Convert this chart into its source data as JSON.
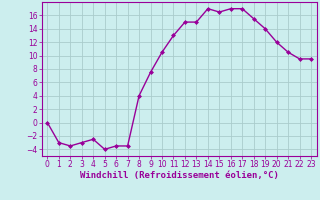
{
  "x": [
    0,
    1,
    2,
    3,
    4,
    5,
    6,
    7,
    8,
    9,
    10,
    11,
    12,
    13,
    14,
    15,
    16,
    17,
    18,
    19,
    20,
    21,
    22,
    23
  ],
  "y": [
    0,
    -3,
    -3.5,
    -3,
    -2.5,
    -4,
    -3.5,
    -3.5,
    4,
    7.5,
    10.5,
    13,
    15,
    15,
    17,
    16.5,
    17,
    17,
    15.5,
    14,
    12,
    10.5,
    9.5,
    9.5
  ],
  "line_color": "#990099",
  "marker": "D",
  "markersize": 2,
  "linewidth": 1.0,
  "bg_color": "#cceeee",
  "grid_color": "#aacccc",
  "xlabel": "Windchill (Refroidissement éolien,°C)",
  "xlabel_fontsize": 6.5,
  "yticks": [
    -4,
    -2,
    0,
    2,
    4,
    6,
    8,
    10,
    12,
    14,
    16
  ],
  "ylim": [
    -5,
    18
  ],
  "xlim": [
    -0.5,
    23.5
  ],
  "tick_fontsize": 5.5,
  "tick_color": "#990099",
  "spine_color": "#990099"
}
